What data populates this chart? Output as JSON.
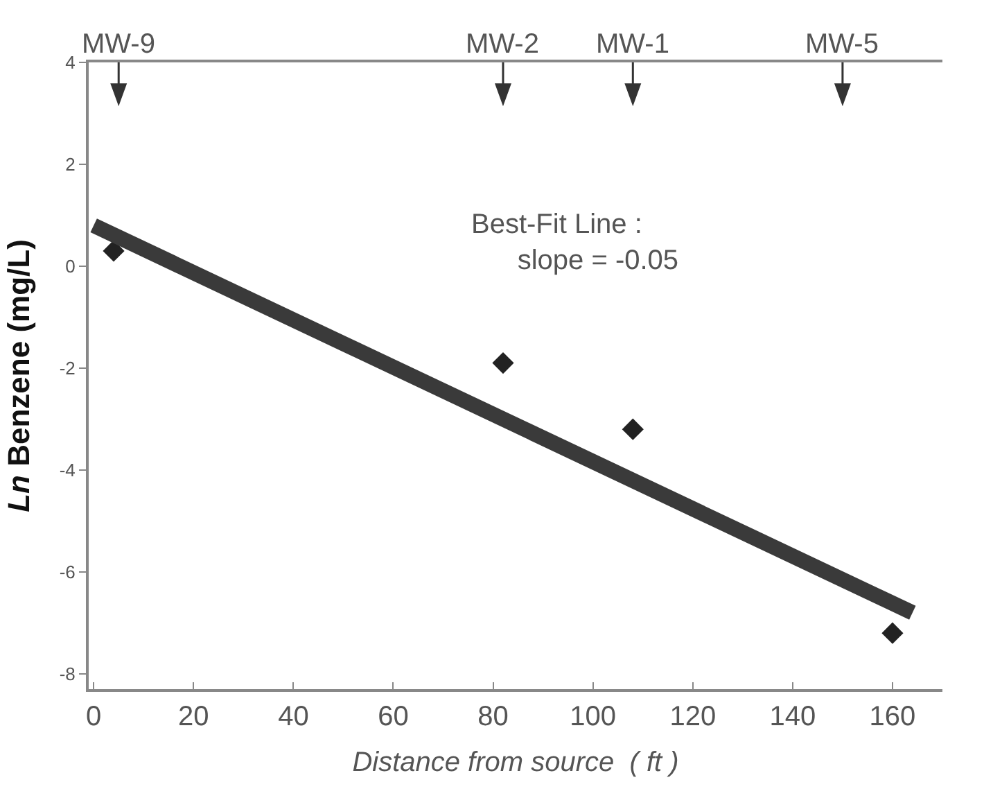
{
  "chart_data": {
    "type": "scatter",
    "xlabel": "Distance from source  ( ft )",
    "ylabel": "Ln Benzene (mg/L)",
    "xlim": [
      -1,
      170
    ],
    "xticks": [
      0,
      20,
      40,
      60,
      80,
      100,
      120,
      140,
      160
    ],
    "ylim": [
      -8.3,
      4
    ],
    "yticks": [
      -8,
      -6,
      -4,
      -2,
      0,
      2,
      4
    ],
    "legend": false,
    "series": [
      {
        "marker": "diamond",
        "color": "#222222",
        "x": [
          4,
          82,
          108,
          160
        ],
        "values": [
          0.3,
          -1.9,
          -3.2,
          -7.2
        ]
      },
      {
        "type": "line",
        "marker": "none",
        "color": "#3a3a3a",
        "x": [
          0,
          164
        ],
        "values": [
          0.8,
          -6.8
        ]
      }
    ],
    "annotations": [
      "Best-Fit Line :\n   slope = -0.05"
    ],
    "ref_lines": [
      {
        "axis": "x",
        "value": 5,
        "label": "MW-9"
      },
      {
        "axis": "x",
        "value": 82,
        "label": "MW-2"
      },
      {
        "axis": "x",
        "value": 108,
        "label": "MW-1"
      },
      {
        "axis": "x",
        "value": 150,
        "label": "MW-5"
      }
    ]
  }
}
